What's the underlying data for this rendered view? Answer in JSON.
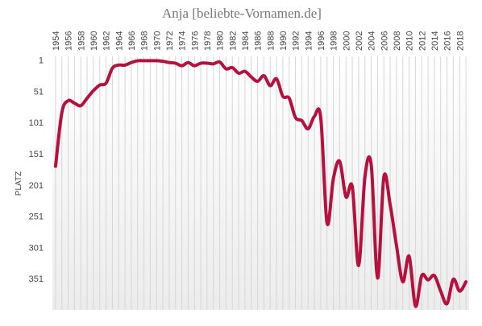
{
  "chart_data": {
    "type": "line",
    "title": "Anja  [beliebte-Vornamen.de]",
    "y_label": "PLATZ",
    "x": [
      1954,
      1955,
      1956,
      1957,
      1958,
      1959,
      1960,
      1961,
      1962,
      1963,
      1964,
      1965,
      1966,
      1967,
      1968,
      1969,
      1970,
      1971,
      1972,
      1973,
      1974,
      1975,
      1976,
      1977,
      1978,
      1979,
      1980,
      1981,
      1982,
      1983,
      1984,
      1985,
      1986,
      1987,
      1988,
      1989,
      1990,
      1991,
      1992,
      1993,
      1994,
      1995,
      1996,
      1997,
      1998,
      1999,
      2000,
      2001,
      2002,
      2003,
      2004,
      2005,
      2006,
      2007,
      2008,
      2009,
      2010,
      2011,
      2012,
      2013,
      2014,
      2015,
      2016,
      2017,
      2018,
      2019
    ],
    "series": [
      {
        "name": "Anja",
        "color": "#b5103e",
        "values": [
          171,
          85,
          66,
          70,
          74,
          62,
          50,
          41,
          38,
          14,
          9,
          9,
          5,
          2,
          2,
          2,
          2,
          3,
          5,
          6,
          10,
          5,
          10,
          6,
          6,
          7,
          4,
          15,
          13,
          22,
          19,
          28,
          35,
          26,
          42,
          31,
          59,
          62,
          93,
          98,
          111,
          91,
          93,
          262,
          191,
          163,
          220,
          204,
          330,
          188,
          169,
          350,
          188,
          233,
          298,
          356,
          315,
          395,
          346,
          353,
          346,
          371,
          391,
          352,
          371,
          356
        ]
      }
    ],
    "xlim": [
      1953.5,
      2019.5
    ],
    "xticks": [
      1954,
      1956,
      1958,
      1960,
      1962,
      1964,
      1966,
      1968,
      1970,
      1972,
      1974,
      1976,
      1978,
      1980,
      1982,
      1984,
      1986,
      1988,
      1990,
      1992,
      1994,
      1996,
      1998,
      2000,
      2002,
      2004,
      2006,
      2008,
      2010,
      2012,
      2014,
      2016,
      2018
    ],
    "ylim": [
      401,
      -5
    ],
    "yticks": [
      1,
      51,
      101,
      151,
      201,
      251,
      301,
      351
    ],
    "grid": true
  }
}
